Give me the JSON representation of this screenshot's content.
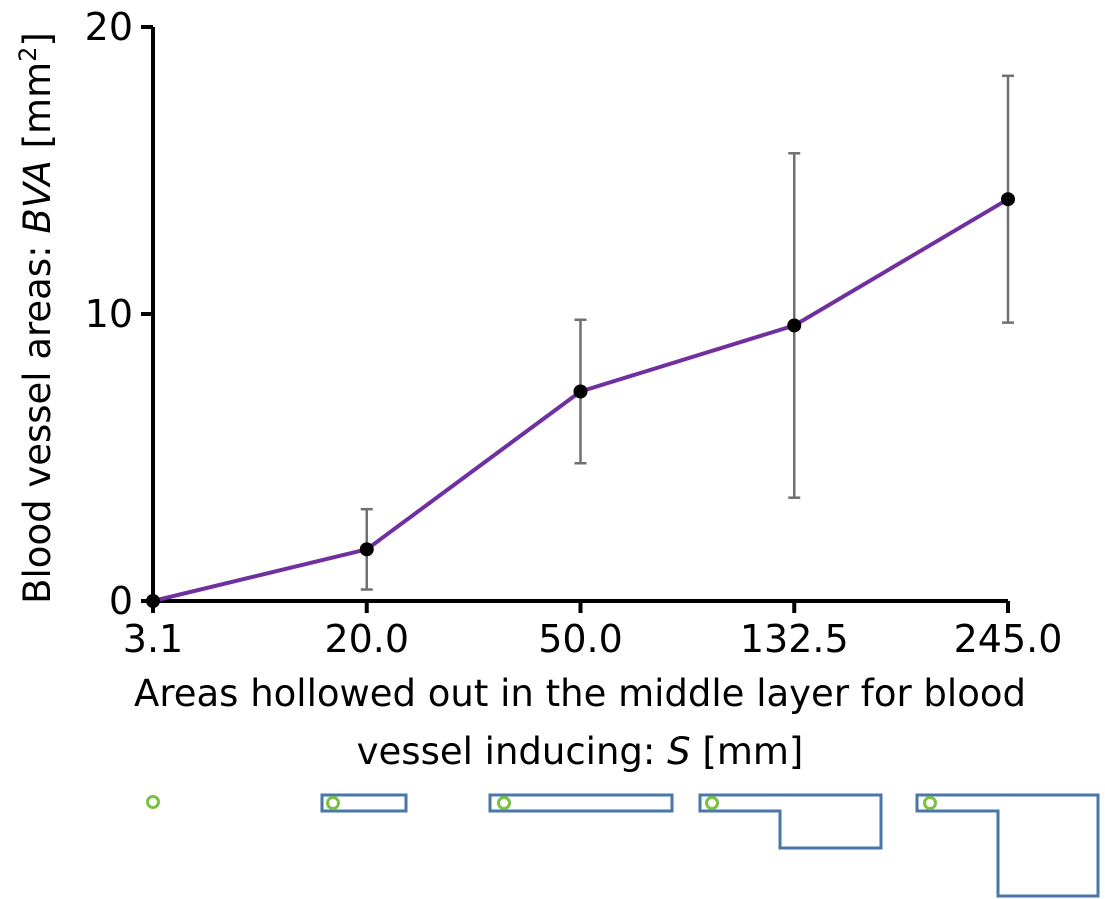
{
  "chart_data": {
    "type": "line",
    "categories": [
      "3.1",
      "20.0",
      "50.0",
      "132.5",
      "245.0"
    ],
    "values": [
      0.0,
      1.8,
      7.3,
      9.6,
      14.0
    ],
    "error_low": [
      0.0,
      0.4,
      4.8,
      3.6,
      9.7
    ],
    "error_high": [
      0.0,
      3.2,
      9.8,
      15.6,
      18.3
    ],
    "ylim": [
      0,
      20
    ],
    "yticks": [
      "0",
      "10",
      "20"
    ],
    "ylabel_prefix": "Blood vessel areas: ",
    "ylabel_italic": "BVA",
    "ylabel_unit": " [mm",
    "ylabel_sup": "2",
    "ylabel_close": "]",
    "xlabel_line1": "Areas hollowed out in the middle layer for blood",
    "xlabel_line2_prefix": "vessel inducing: ",
    "xlabel_line2_italic": "S",
    "xlabel_line2_suffix": " [mm]",
    "grid": false,
    "colors": {
      "line": "#7030a0",
      "marker": "#000000",
      "errorbar": "#707070",
      "schematic_outline": "#4a76a8",
      "schematic_circle": "#7ac143"
    }
  }
}
